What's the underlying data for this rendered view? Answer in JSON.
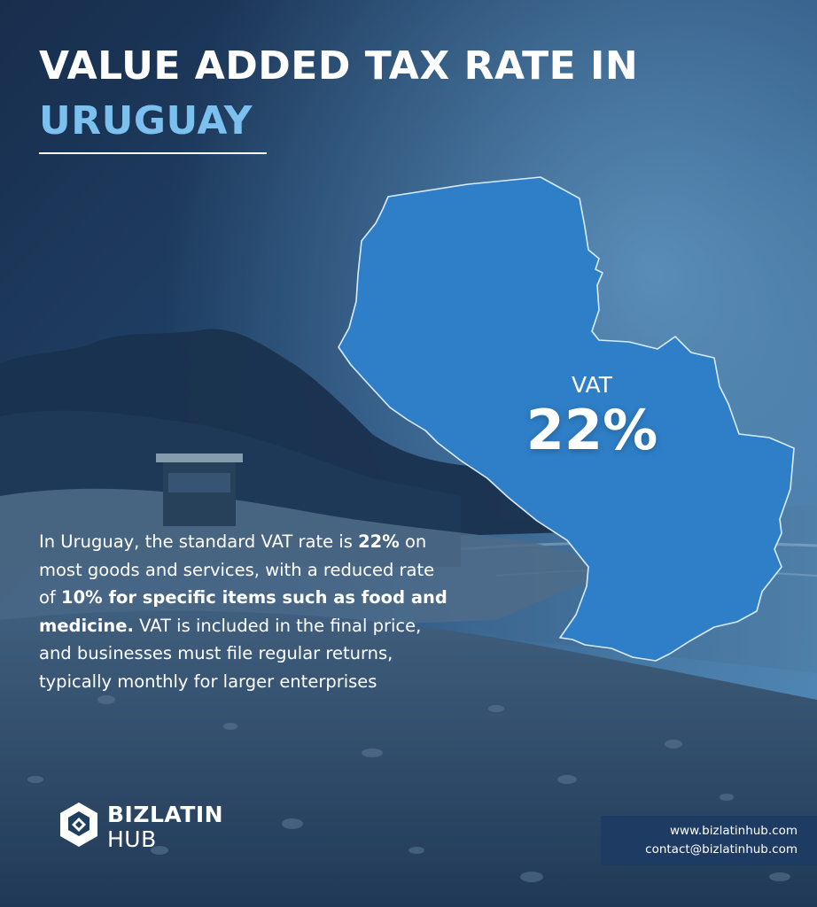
{
  "title": {
    "line1": "VALUE ADDED TAX RATE IN",
    "line2": "URUGUAY"
  },
  "map": {
    "label": "VAT",
    "value": "22%",
    "fill_color": "#2f7fc8",
    "stroke_color": "#d8ecff"
  },
  "body": {
    "segments": [
      {
        "text": "In Uruguay, the standard VAT rate is ",
        "bold": false
      },
      {
        "text": "22%",
        "bold": true
      },
      {
        "text": " on most goods and services, with a reduced rate of ",
        "bold": false
      },
      {
        "text": "10% for specific items such as food and medicine.",
        "bold": true
      },
      {
        "text": " VAT is included in the final price, and businesses must file regular returns, typically monthly for larger enterprises",
        "bold": false
      }
    ]
  },
  "logo": {
    "line1": "BIZLATIN",
    "line2": "HUB",
    "icon": "bizlatinhub-hexagon-logo"
  },
  "contact": {
    "website": "www.bizlatinhub.com",
    "email": "contact@bizlatinhub.com"
  },
  "colors": {
    "accent_title": "#7cc0f0",
    "background_dark": "#1d3a5a",
    "contact_box": "#1d3b63"
  }
}
